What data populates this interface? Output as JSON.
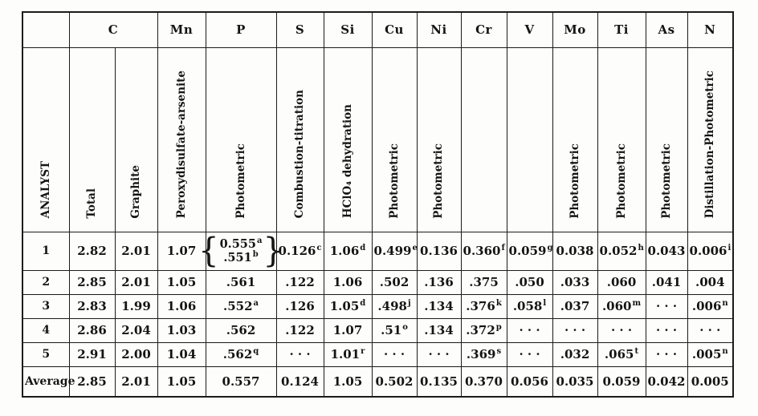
{
  "table": {
    "analyst_header": "ANALYST",
    "brace_open": "{",
    "brace_close": "}",
    "element_headers": [
      {
        "label": "C",
        "span": 2
      },
      {
        "label": "Mn",
        "span": 1
      },
      {
        "label": "P",
        "span": 1
      },
      {
        "label": "S",
        "span": 1
      },
      {
        "label": "Si",
        "span": 1
      },
      {
        "label": "Cu",
        "span": 1
      },
      {
        "label": "Ni",
        "span": 1
      },
      {
        "label": "Cr",
        "span": 1
      },
      {
        "label": "V",
        "span": 1
      },
      {
        "label": "Mo",
        "span": 1
      },
      {
        "label": "Ti",
        "span": 1
      },
      {
        "label": "As",
        "span": 1
      },
      {
        "label": "N",
        "span": 1
      }
    ],
    "methods": [
      "Total",
      "Graphite",
      "Peroxydisulfate-arsenite",
      "Photometric",
      "Combustion-titration",
      "HClO₄ dehydration",
      "Photometric",
      "Photometric",
      "",
      "",
      "Photometric",
      "Photometric",
      "Photometric",
      "Distillation-Photometric"
    ],
    "rows": [
      {
        "analyst": "1",
        "cells": [
          {
            "v": "2.82"
          },
          {
            "v": "2.01"
          },
          {
            "v": "1.07"
          },
          {
            "brace": [
              {
                "v": "0.555",
                "sup": "a"
              },
              {
                "v": ".551",
                "sup": "b"
              }
            ]
          },
          {
            "v": "0.126",
            "sup": "c"
          },
          {
            "v": "1.06",
            "sup": "d"
          },
          {
            "v": "0.499",
            "sup": "e"
          },
          {
            "v": "0.136"
          },
          {
            "v": "0.360",
            "sup": "f"
          },
          {
            "v": "0.059",
            "sup": "g"
          },
          {
            "v": "0.038"
          },
          {
            "v": "0.052",
            "sup": "h"
          },
          {
            "v": "0.043"
          },
          {
            "v": "0.006",
            "sup": "i"
          }
        ]
      },
      {
        "analyst": "2",
        "cells": [
          {
            "v": "2.85"
          },
          {
            "v": "2.01"
          },
          {
            "v": "1.05"
          },
          {
            "v": ".561"
          },
          {
            "v": ".122"
          },
          {
            "v": "1.06"
          },
          {
            "v": ".502"
          },
          {
            "v": ".136"
          },
          {
            "v": ".375"
          },
          {
            "v": ".050"
          },
          {
            "v": ".033"
          },
          {
            "v": ".060"
          },
          {
            "v": ".041"
          },
          {
            "v": ".004"
          }
        ]
      },
      {
        "analyst": "3",
        "cells": [
          {
            "v": "2.83"
          },
          {
            "v": "1.99"
          },
          {
            "v": "1.06"
          },
          {
            "v": ".552",
            "sup": "a"
          },
          {
            "v": ".126"
          },
          {
            "v": "1.05",
            "sup": "d"
          },
          {
            "v": ".498",
            "sup": "j"
          },
          {
            "v": ".134"
          },
          {
            "v": ".376",
            "sup": "k"
          },
          {
            "v": ".058",
            "sup": "l"
          },
          {
            "v": ".037"
          },
          {
            "v": ".060",
            "sup": "m"
          },
          {
            "v": "· · ·"
          },
          {
            "v": ".006",
            "sup": "n"
          }
        ]
      },
      {
        "analyst": "4",
        "cells": [
          {
            "v": "2.86"
          },
          {
            "v": "2.04"
          },
          {
            "v": "1.03"
          },
          {
            "v": ".562"
          },
          {
            "v": ".122"
          },
          {
            "v": "1.07"
          },
          {
            "v": ".51",
            "sup": "o"
          },
          {
            "v": ".134"
          },
          {
            "v": ".372",
            "sup": "p"
          },
          {
            "v": "· · ·"
          },
          {
            "v": "· · ·"
          },
          {
            "v": "· · ·"
          },
          {
            "v": "· · ·"
          },
          {
            "v": "· · ·"
          }
        ]
      },
      {
        "analyst": "5",
        "cells": [
          {
            "v": "2.91"
          },
          {
            "v": "2.00"
          },
          {
            "v": "1.04"
          },
          {
            "v": ".562",
            "sup": "q"
          },
          {
            "v": "· · ·"
          },
          {
            "v": "1.01",
            "sup": "r"
          },
          {
            "v": "· · ·"
          },
          {
            "v": "· · ·"
          },
          {
            "v": ".369",
            "sup": "s"
          },
          {
            "v": "· · ·"
          },
          {
            "v": ".032"
          },
          {
            "v": ".065",
            "sup": "t"
          },
          {
            "v": "· · ·"
          },
          {
            "v": ".005",
            "sup": "n"
          }
        ]
      }
    ],
    "average_row": {
      "analyst": "Average",
      "cells": [
        {
          "v": "2.85"
        },
        {
          "v": "2.01"
        },
        {
          "v": "1.05"
        },
        {
          "v": "0.557"
        },
        {
          "v": "0.124"
        },
        {
          "v": "1.05"
        },
        {
          "v": "0.502"
        },
        {
          "v": "0.135"
        },
        {
          "v": "0.370"
        },
        {
          "v": "0.056"
        },
        {
          "v": "0.035"
        },
        {
          "v": "0.059"
        },
        {
          "v": "0.042"
        },
        {
          "v": "0.005"
        }
      ]
    }
  }
}
